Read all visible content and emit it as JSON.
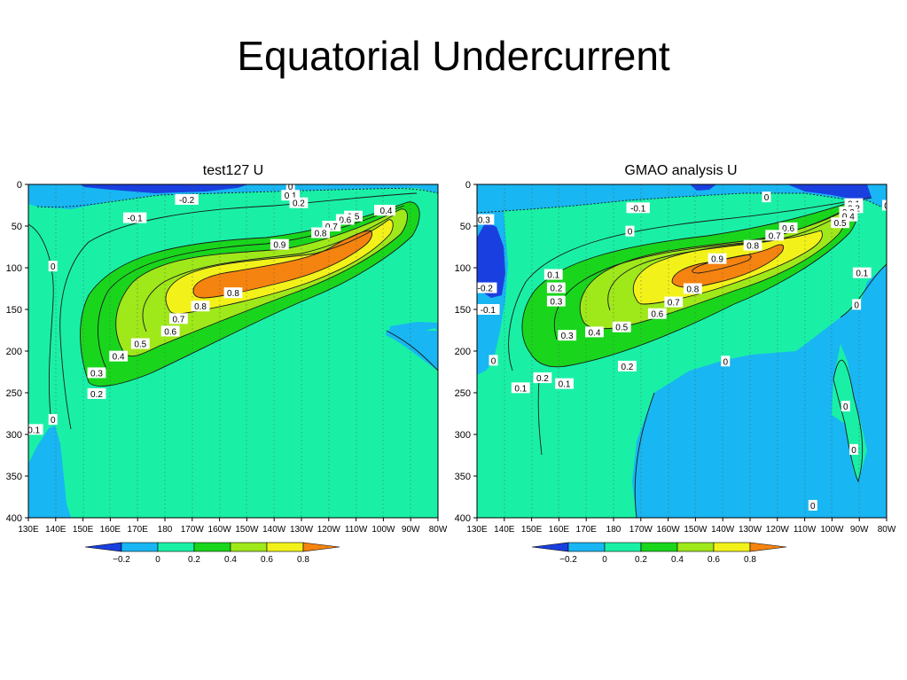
{
  "slide": {
    "title": "Equatorial Undercurrent"
  },
  "colors": {
    "lt_-0.2": "#1a3fe0",
    "-0.2_0": "#18b6f2",
    "0_0.2": "#19f0a6",
    "0.2_0.4": "#19d61c",
    "0.4_0.6": "#9fe81a",
    "0.6_0.8": "#f2f21a",
    "gt_0.8": "#f5830f"
  },
  "chart_data": [
    {
      "type": "heatmap",
      "title": "test127 U",
      "x_ticks": [
        "130E",
        "140E",
        "150E",
        "160E",
        "170E",
        "180",
        "170W",
        "160W",
        "150W",
        "140W",
        "130W",
        "120W",
        "110W",
        "100W",
        "90W",
        "80W"
      ],
      "y_ticks": [
        "0",
        "50",
        "100",
        "150",
        "200",
        "250",
        "300",
        "350",
        "400"
      ],
      "ylim": [
        400,
        0
      ],
      "grid": true,
      "colorbar": {
        "ticks": [
          "−0.2",
          "0",
          "0.2",
          "0.4",
          "0.6",
          "0.8"
        ],
        "levels": [
          -0.2,
          0,
          0.2,
          0.4,
          0.6,
          0.8
        ]
      },
      "contour_labels": [
        {
          "text": "0",
          "lon": 226,
          "depth": 2
        },
        {
          "text": "-0.2",
          "lon": 188,
          "depth": 18
        },
        {
          "text": "0.1",
          "lon": 226,
          "depth": 13
        },
        {
          "text": "0.2",
          "lon": 229,
          "depth": 22
        },
        {
          "text": "-0.1",
          "lon": 169,
          "depth": 40
        },
        {
          "text": "0.3",
          "lon": 260,
          "depth": 31
        },
        {
          "text": "0.4",
          "lon": 261,
          "depth": 31
        },
        {
          "text": "0.5",
          "lon": 249,
          "depth": 38
        },
        {
          "text": "0.6",
          "lon": 246,
          "depth": 42
        },
        {
          "text": "0.7",
          "lon": 241,
          "depth": 50
        },
        {
          "text": "0.8",
          "lon": 237,
          "depth": 58
        },
        {
          "text": "0.9",
          "lon": 222,
          "depth": 72
        },
        {
          "text": "0",
          "lon": 139,
          "depth": 98
        },
        {
          "text": "0.8",
          "lon": 205,
          "depth": 130
        },
        {
          "text": "0.8",
          "lon": 193,
          "depth": 146
        },
        {
          "text": "0.7",
          "lon": 185,
          "depth": 161
        },
        {
          "text": "0.6",
          "lon": 182,
          "depth": 176
        },
        {
          "text": "0.5",
          "lon": 171,
          "depth": 191
        },
        {
          "text": "0.4",
          "lon": 163,
          "depth": 206
        },
        {
          "text": "0.3",
          "lon": 155,
          "depth": 226
        },
        {
          "text": "0.2",
          "lon": 155,
          "depth": 251
        },
        {
          "text": "0",
          "lon": 139,
          "depth": 282
        },
        {
          "text": "0.1",
          "lon": 132,
          "depth": 294
        }
      ]
    },
    {
      "type": "heatmap",
      "title": "GMAO analysis U",
      "x_ticks": [
        "130E",
        "140E",
        "150E",
        "160E",
        "170E",
        "180",
        "170W",
        "160W",
        "150W",
        "140W",
        "130W",
        "120W",
        "110W",
        "100W",
        "90W",
        "80W"
      ],
      "y_ticks": [
        "0",
        "50",
        "100",
        "150",
        "200",
        "250",
        "300",
        "350",
        "400"
      ],
      "ylim": [
        400,
        0
      ],
      "grid": true,
      "colorbar": {
        "ticks": [
          "−0.2",
          "0",
          "0.2",
          "0.4",
          "0.6",
          "0.8"
        ],
        "levels": [
          -0.2,
          0,
          0.2,
          0.4,
          0.6,
          0.8
        ]
      },
      "contour_labels": [
        {
          "text": "0",
          "lon": 236,
          "depth": 15
        },
        {
          "text": "0.1",
          "lon": 268,
          "depth": 23
        },
        {
          "text": "0.2",
          "lon": 268,
          "depth": 28
        },
        {
          "text": "0.3",
          "lon": 266,
          "depth": 33
        },
        {
          "text": "0.4",
          "lon": 266,
          "depth": 38
        },
        {
          "text": "0.5",
          "lon": 263,
          "depth": 46
        },
        {
          "text": "-0.1",
          "lon": 189,
          "depth": 28
        },
        {
          "text": "0",
          "lon": 280,
          "depth": 25
        },
        {
          "text": "-0.3",
          "lon": 132,
          "depth": 42
        },
        {
          "text": "0",
          "lon": 186,
          "depth": 56
        },
        {
          "text": "0.6",
          "lon": 244,
          "depth": 52
        },
        {
          "text": "0.7",
          "lon": 239,
          "depth": 61
        },
        {
          "text": "0.8",
          "lon": 231,
          "depth": 73
        },
        {
          "text": "0.9",
          "lon": 218,
          "depth": 89
        },
        {
          "text": "0.1",
          "lon": 158,
          "depth": 108
        },
        {
          "text": "0.1",
          "lon": 271,
          "depth": 106
        },
        {
          "text": "0.8",
          "lon": 209,
          "depth": 125
        },
        {
          "text": "-0.2",
          "lon": 133,
          "depth": 124
        },
        {
          "text": "0.2",
          "lon": 159,
          "depth": 124
        },
        {
          "text": "0.7",
          "lon": 202,
          "depth": 141
        },
        {
          "text": "0.3",
          "lon": 159,
          "depth": 140
        },
        {
          "text": "-0.1",
          "lon": 134,
          "depth": 150
        },
        {
          "text": "0",
          "lon": 269,
          "depth": 144
        },
        {
          "text": "0.6",
          "lon": 196,
          "depth": 155
        },
        {
          "text": "0.5",
          "lon": 183,
          "depth": 171
        },
        {
          "text": "0.4",
          "lon": 173,
          "depth": 177
        },
        {
          "text": "0.3",
          "lon": 163,
          "depth": 181
        },
        {
          "text": "0",
          "lon": 136,
          "depth": 211
        },
        {
          "text": "0",
          "lon": 221,
          "depth": 212
        },
        {
          "text": "0.2",
          "lon": 185,
          "depth": 218
        },
        {
          "text": "0.2",
          "lon": 154,
          "depth": 232
        },
        {
          "text": "0.1",
          "lon": 146,
          "depth": 244
        },
        {
          "text": "0.1",
          "lon": 162,
          "depth": 239
        },
        {
          "text": "0",
          "lon": 265,
          "depth": 266
        },
        {
          "text": "0",
          "lon": 268,
          "depth": 318
        },
        {
          "text": "0",
          "lon": 253,
          "depth": 385
        }
      ]
    }
  ]
}
